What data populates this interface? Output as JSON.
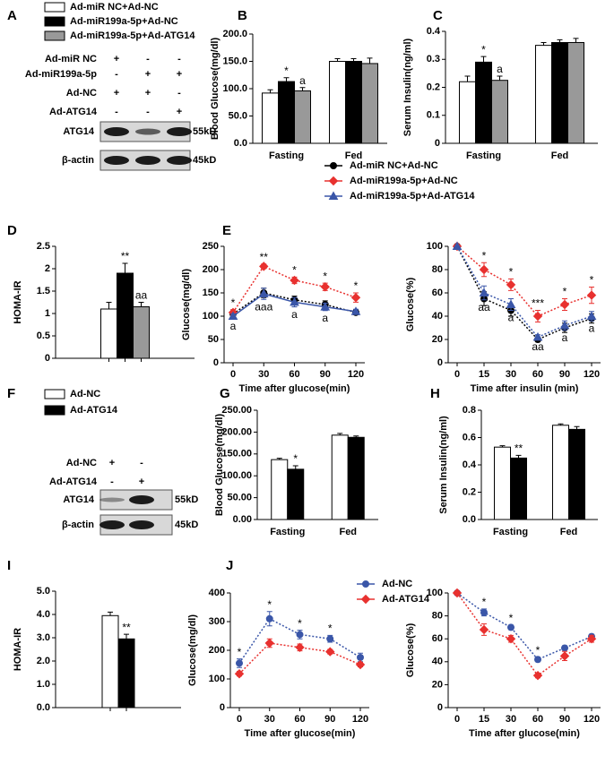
{
  "legends": [
    {
      "entries": [
        {
          "name": "Ad-miR NC+Ad-NC",
          "color": "#ffffff"
        },
        {
          "name": "Ad-miR199a-5p+Ad-NC",
          "color": "#000000"
        },
        {
          "name": "Ad-miR199a-5p+Ad-ATG14",
          "color": "#999999"
        }
      ]
    },
    {
      "entries": [
        {
          "name": "Ad-miR NC+Ad-NC",
          "color": "#000000",
          "marker": "circle"
        },
        {
          "name": "Ad-miR199a-5p+Ad-NC",
          "color": "#e8312f",
          "marker": "diamond"
        },
        {
          "name": "Ad-miR199a-5p+Ad-ATG14",
          "color": "#3a56a8",
          "marker": "triangle"
        }
      ]
    },
    {
      "entries": [
        {
          "name": "Ad-NC",
          "color": "#ffffff"
        },
        {
          "name": "Ad-ATG14",
          "color": "#000000"
        }
      ]
    },
    {
      "entries": [
        {
          "name": "Ad-NC",
          "color": "#3a56a8",
          "marker": "circle"
        },
        {
          "name": "Ad-ATG14",
          "color": "#e8312f",
          "marker": "diamond"
        }
      ]
    }
  ],
  "blots": [
    {
      "label": "A",
      "rows": [
        {
          "name": "Ad-miR NC",
          "signs": [
            "+",
            "-",
            "-"
          ]
        },
        {
          "name": "Ad-miR199a-5p",
          "signs": [
            "-",
            "+",
            "+"
          ]
        },
        {
          "name": "Ad-NC",
          "signs": [
            "+",
            "+",
            "-"
          ]
        },
        {
          "name": "Ad-ATG14",
          "signs": [
            "-",
            "-",
            "+"
          ]
        }
      ],
      "bands": [
        {
          "name": "ATG14",
          "size": "55kD"
        },
        {
          "name": "β-actin",
          "size": "45kD"
        }
      ]
    },
    {
      "label": "F",
      "rows": [
        {
          "name": "Ad-NC",
          "signs": [
            "+",
            "-"
          ]
        },
        {
          "name": "Ad-ATG14",
          "signs": [
            "-",
            "+"
          ]
        }
      ],
      "bands": [
        {
          "name": "ATG14",
          "size": "55kD"
        },
        {
          "name": "β-actin",
          "size": "45kD"
        }
      ]
    }
  ],
  "chart_data": [
    {
      "type": "bar",
      "label": "B",
      "ylabel": "Blood Glucose(mg/dl)",
      "categories": [
        "Fasting",
        "Fed"
      ],
      "series": [
        {
          "color": "#ffffff",
          "values": [
            92,
            150
          ],
          "errors": [
            6,
            5
          ],
          "annotations": [
            null,
            null
          ]
        },
        {
          "color": "#000000",
          "values": [
            113,
            150
          ],
          "errors": [
            7,
            5
          ],
          "annotations": [
            "*",
            null
          ]
        },
        {
          "color": "#999999",
          "values": [
            96,
            146
          ],
          "errors": [
            6,
            10
          ],
          "annotations": [
            "a",
            null
          ]
        }
      ],
      "ylim": [
        0,
        200
      ],
      "yticks": [
        {
          "value": 0,
          "label": "0.0"
        },
        {
          "value": 50,
          "label": "50.0"
        },
        {
          "value": 100,
          "label": "100.0"
        },
        {
          "value": 150,
          "label": "150.0"
        },
        {
          "value": 200,
          "label": "200.0"
        }
      ]
    },
    {
      "type": "bar",
      "label": "C",
      "ylabel": "Serum Insulin(ng/ml)",
      "categories": [
        "Fasting",
        "Fed"
      ],
      "series": [
        {
          "color": "#ffffff",
          "values": [
            0.22,
            0.35
          ],
          "errors": [
            0.02,
            0.01
          ],
          "annotations": [
            null,
            null
          ]
        },
        {
          "color": "#000000",
          "values": [
            0.29,
            0.36
          ],
          "errors": [
            0.02,
            0.01
          ],
          "annotations": [
            "*",
            null
          ]
        },
        {
          "color": "#999999",
          "values": [
            0.225,
            0.36
          ],
          "errors": [
            0.015,
            0.015
          ],
          "annotations": [
            "a",
            null
          ]
        }
      ],
      "ylim": [
        0,
        0.4
      ],
      "yticks": [
        0,
        0.1,
        0.2,
        0.3,
        0.4
      ]
    },
    {
      "type": "bar",
      "label": "D",
      "ylabel": "HOMA-IR",
      "categories": [
        null
      ],
      "series": [
        {
          "color": "#ffffff",
          "values": [
            1.1
          ],
          "errors": [
            0.15
          ],
          "annotations": [
            null
          ]
        },
        {
          "color": "#000000",
          "values": [
            1.9
          ],
          "errors": [
            0.22
          ],
          "annotations": [
            "**"
          ]
        },
        {
          "color": "#999999",
          "values": [
            1.15
          ],
          "errors": [
            0.1
          ],
          "annotations": [
            "aa"
          ]
        }
      ],
      "ylim": [
        0,
        2.5
      ],
      "yticks": [
        0,
        0.5,
        1,
        1.5,
        2,
        2.5
      ]
    },
    {
      "type": "line",
      "label": "E",
      "ylabel": "Glucose(mg/dl)",
      "xlabel": "Time after glucose(min)",
      "categories": [
        "0",
        "30",
        "60",
        "90",
        "120"
      ],
      "series": [
        {
          "color": "#000000",
          "marker": "circle",
          "dash": true,
          "values": [
            105,
            150,
            135,
            125,
            108
          ],
          "errors": [
            5,
            10,
            8,
            8,
            5
          ],
          "annotations": [
            null,
            null,
            null,
            null,
            null
          ],
          "annotation_position": "above"
        },
        {
          "color": "#e8312f",
          "marker": "diamond",
          "dash": true,
          "values": [
            108,
            207,
            177,
            163,
            140
          ],
          "errors": [
            6,
            5,
            7,
            8,
            10
          ],
          "annotations": [
            "*",
            "**",
            "*",
            "*",
            "*"
          ],
          "annotation_position": "above"
        },
        {
          "color": "#3a56a8",
          "marker": "triangle",
          "dash": false,
          "values": [
            100,
            148,
            130,
            120,
            110
          ],
          "errors": [
            5,
            12,
            10,
            8,
            5
          ],
          "annotations": [
            "a",
            "aaa",
            "a",
            "a",
            null
          ],
          "annotation_position": "below"
        }
      ],
      "ylim": [
        0,
        250
      ],
      "yticks": [
        0,
        50,
        100,
        150,
        200,
        250
      ]
    },
    {
      "type": "line",
      "ylabel": "Glucose(%)",
      "xlabel": "Time after insulin (min)",
      "categories": [
        "0",
        "15",
        "30",
        "60",
        "90",
        "120"
      ],
      "series": [
        {
          "color": "#000000",
          "marker": "circle",
          "dash": true,
          "values": [
            100,
            55,
            45,
            20,
            30,
            38
          ],
          "errors": [
            0,
            6,
            5,
            2,
            4,
            4
          ],
          "annotations": [
            null,
            null,
            null,
            null,
            null,
            null
          ],
          "annotation_position": "above"
        },
        {
          "color": "#e8312f",
          "marker": "diamond",
          "dash": true,
          "values": [
            100,
            80,
            67,
            40,
            50,
            58
          ],
          "errors": [
            0,
            6,
            5,
            5,
            5,
            7
          ],
          "annotations": [
            null,
            "*",
            "*",
            "***",
            "*",
            "*"
          ],
          "annotation_position": "above"
        },
        {
          "color": "#3a56a8",
          "marker": "triangle",
          "dash": true,
          "values": [
            100,
            60,
            50,
            22,
            32,
            40
          ],
          "errors": [
            0,
            6,
            5,
            2,
            4,
            4
          ],
          "annotations": [
            null,
            "aa",
            "a",
            "aa",
            "a",
            "a"
          ],
          "annotation_position": "below"
        }
      ],
      "ylim": [
        0,
        100
      ],
      "yticks": [
        0,
        20,
        40,
        60,
        80,
        100
      ]
    },
    {
      "type": "bar",
      "label": "G",
      "ylabel": "Blood Glucose(mg/dl)",
      "categories": [
        "Fasting",
        "Fed"
      ],
      "series": [
        {
          "color": "#ffffff",
          "values": [
            137,
            193
          ],
          "errors": [
            3,
            4
          ],
          "annotations": [
            null,
            null
          ]
        },
        {
          "color": "#000000",
          "values": [
            115,
            188
          ],
          "errors": [
            8,
            3
          ],
          "annotations": [
            "*",
            null
          ]
        }
      ],
      "ylim": [
        0,
        250
      ],
      "yticks": [
        {
          "value": 0,
          "label": "0.00"
        },
        {
          "value": 50,
          "label": "50.00"
        },
        {
          "value": 100,
          "label": "100.00"
        },
        {
          "value": 150,
          "label": "150.00"
        },
        {
          "value": 200,
          "label": "200.00"
        },
        {
          "value": 250,
          "label": "250.00"
        }
      ]
    },
    {
      "type": "bar",
      "label": "H",
      "ylabel": "Serum Insulin(ng/ml)",
      "categories": [
        "Fasting",
        "Fed"
      ],
      "series": [
        {
          "color": "#ffffff",
          "values": [
            0.53,
            0.69
          ],
          "errors": [
            0.01,
            0.01
          ],
          "annotations": [
            null,
            null
          ]
        },
        {
          "color": "#000000",
          "values": [
            0.45,
            0.66
          ],
          "errors": [
            0.02,
            0.02
          ],
          "annotations": [
            "**",
            null
          ]
        }
      ],
      "ylim": [
        0,
        0.8
      ],
      "yticks": [
        {
          "value": 0,
          "label": "0.0"
        },
        {
          "value": 0.2,
          "label": "0.2"
        },
        {
          "value": 0.4,
          "label": "0.4"
        },
        {
          "value": 0.6,
          "label": "0.6"
        },
        {
          "value": 0.8,
          "label": "0.8"
        }
      ]
    },
    {
      "type": "bar",
      "label": "I",
      "ylabel": "HOMA-IR",
      "categories": [
        null
      ],
      "series": [
        {
          "color": "#ffffff",
          "values": [
            3.95
          ],
          "errors": [
            0.15
          ],
          "annotations": [
            null
          ]
        },
        {
          "color": "#000000",
          "values": [
            2.95
          ],
          "errors": [
            0.2
          ],
          "annotations": [
            "**"
          ]
        }
      ],
      "ylim": [
        0,
        5
      ],
      "yticks": [
        {
          "value": 0,
          "label": "0.0"
        },
        {
          "value": 1,
          "label": "1.0"
        },
        {
          "value": 2,
          "label": "2.0"
        },
        {
          "value": 3,
          "label": "3.0"
        },
        {
          "value": 4,
          "label": "4.0"
        },
        {
          "value": 5,
          "label": "5.0"
        }
      ]
    },
    {
      "type": "line",
      "label": "J",
      "ylabel": "Glucose(mg/dl)",
      "xlabel": "Time after glucose(min)",
      "categories": [
        "0",
        "30",
        "60",
        "90",
        "120"
      ],
      "series": [
        {
          "color": "#3a56a8",
          "marker": "circle",
          "dash": true,
          "values": [
            155,
            310,
            255,
            240,
            175
          ],
          "errors": [
            15,
            25,
            15,
            12,
            15
          ],
          "annotations": [
            "*",
            "*",
            "*",
            "*",
            null
          ],
          "annotation_position": "above"
        },
        {
          "color": "#e8312f",
          "marker": "diamond",
          "dash": true,
          "values": [
            118,
            225,
            210,
            195,
            150
          ],
          "errors": [
            8,
            15,
            12,
            8,
            8
          ],
          "annotations": [
            null,
            null,
            null,
            null,
            null
          ],
          "annotation_position": "above"
        }
      ],
      "ylim": [
        0,
        400
      ],
      "yticks": [
        0,
        100,
        200,
        300,
        400
      ]
    },
    {
      "type": "line",
      "ylabel": "Glucose(%)",
      "xlabel": "Time after glucose(min)",
      "categories": [
        "0",
        "15",
        "30",
        "60",
        "90",
        "120"
      ],
      "series": [
        {
          "color": "#3a56a8",
          "marker": "circle",
          "dash": true,
          "values": [
            100,
            83,
            70,
            42,
            52,
            62
          ],
          "errors": [
            0,
            3,
            2,
            2,
            2,
            2
          ],
          "annotations": [
            null,
            "*",
            "*",
            "*",
            null,
            null
          ],
          "annotation_position": "above"
        },
        {
          "color": "#e8312f",
          "marker": "diamond",
          "dash": true,
          "values": [
            100,
            68,
            60,
            28,
            45,
            60
          ],
          "errors": [
            0,
            5,
            3,
            2,
            4,
            3
          ],
          "annotations": [
            null,
            null,
            null,
            null,
            null,
            null
          ],
          "annotation_position": "above"
        }
      ],
      "ylim": [
        0,
        100
      ],
      "yticks": [
        0,
        20,
        40,
        60,
        80,
        100
      ]
    }
  ]
}
